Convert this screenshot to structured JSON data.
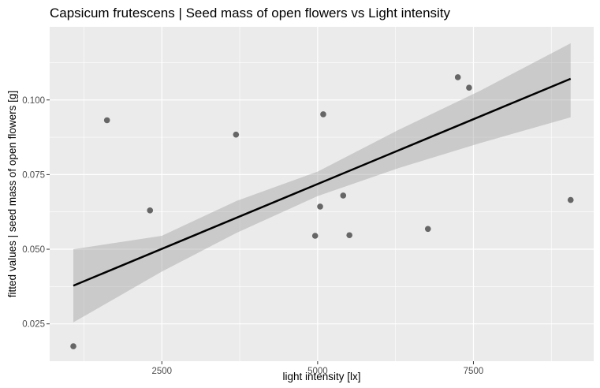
{
  "chart_data": {
    "type": "scatter",
    "title": "Capsicum frutescens | Seed mass of open flowers vs Light intensity",
    "xlabel": "light intensity [lx]",
    "ylabel": "fitted values | seed mass of open flowers [g]",
    "xlim": [
      700,
      9430
    ],
    "ylim": [
      0.0125,
      0.1245
    ],
    "x_ticks": [
      2500,
      5000,
      7500
    ],
    "x_tick_labels": [
      "2500",
      "5000",
      "7500"
    ],
    "y_ticks": [
      0.025,
      0.05,
      0.075,
      0.1
    ],
    "y_tick_labels": [
      "0.025",
      "0.050",
      "0.075",
      "0.100"
    ],
    "points": [
      {
        "x": 1080,
        "y": 0.0175
      },
      {
        "x": 1620,
        "y": 0.0932
      },
      {
        "x": 2310,
        "y": 0.063
      },
      {
        "x": 3690,
        "y": 0.0884
      },
      {
        "x": 4960,
        "y": 0.0545
      },
      {
        "x": 5040,
        "y": 0.0643
      },
      {
        "x": 5090,
        "y": 0.0952
      },
      {
        "x": 5410,
        "y": 0.068
      },
      {
        "x": 5510,
        "y": 0.0547
      },
      {
        "x": 6770,
        "y": 0.0568
      },
      {
        "x": 7250,
        "y": 0.1076
      },
      {
        "x": 7430,
        "y": 0.1041
      },
      {
        "x": 9060,
        "y": 0.0665
      }
    ],
    "fit_line": {
      "x": [
        1080,
        9060
      ],
      "y": [
        0.0378,
        0.1071
      ]
    },
    "confidence_band": {
      "x": [
        1080,
        2500,
        3700,
        5000,
        6300,
        7600,
        9060
      ],
      "lower": [
        0.0255,
        0.0425,
        0.0555,
        0.0678,
        0.0772,
        0.0855,
        0.0942
      ],
      "upper": [
        0.05,
        0.0545,
        0.0662,
        0.076,
        0.09,
        0.103,
        0.119
      ]
    },
    "grid": true,
    "legend": "none"
  }
}
